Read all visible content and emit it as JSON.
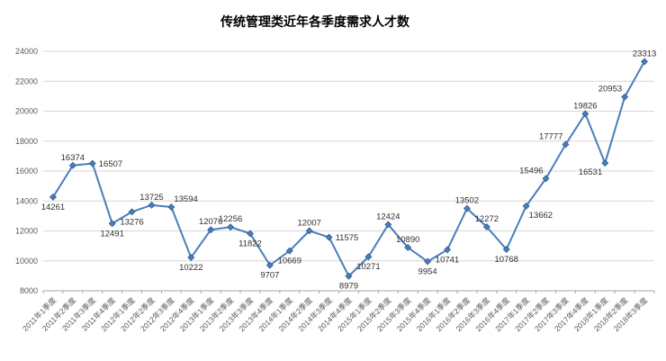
{
  "chart_data": {
    "type": "line",
    "title": "传统管理类近年各季度需求人才数",
    "categories": [
      "2011年1季度",
      "2011年2季度",
      "2011年3季度",
      "2011年4季度",
      "2012年1季度",
      "2012年2季度",
      "2012年3季度",
      "2012年4季度",
      "2013年1季度",
      "2013年2季度",
      "2013年3季度",
      "2013年4季度",
      "2014年1季度",
      "2014年2季度",
      "2014年3季度",
      "2014年4季度",
      "2015年1季度",
      "2015年2季度",
      "2015年3季度",
      "2015年4季度",
      "2016年1季度",
      "2016年2季度",
      "2016年3季度",
      "2016年4季度",
      "2017年1季度",
      "2017年2季度",
      "2017年3季度",
      "2017年4季度",
      "2018年1季度",
      "2018年2季度",
      "2018年3季度"
    ],
    "values": [
      14261,
      16374,
      16507,
      12491,
      13276,
      13725,
      13594,
      10222,
      12076,
      12256,
      11822,
      9707,
      10669,
      12007,
      11575,
      8979,
      10271,
      12424,
      10890,
      9954,
      10741,
      13502,
      12272,
      10768,
      13662,
      15496,
      17777,
      19826,
      16531,
      20953,
      23313
    ],
    "label_position": [
      "below",
      "above",
      "right",
      "below",
      "below",
      "above",
      "above-right",
      "below",
      "above",
      "above",
      "below",
      "below",
      "below",
      "above",
      "right",
      "below",
      "below",
      "above",
      "above",
      "below",
      "below",
      "above",
      "above",
      "below",
      "below-right",
      "above-left",
      "above-left",
      "above",
      "below-left",
      "above-left",
      "above"
    ],
    "ylim": [
      8000,
      24000
    ],
    "yticks": [
      8000,
      10000,
      12000,
      14000,
      16000,
      18000,
      20000,
      22000,
      24000
    ],
    "grid": true,
    "legend": "none",
    "line_color": "#4a7ebb",
    "marker": "diamond",
    "marker_color": "#4a7ebb",
    "marker_edge_color": "#2f5a8f",
    "gridline_color": "#d6d6d6",
    "axis_line_color": "#a6a6a6",
    "axis_label_color": "#595959",
    "data_label_color": "#303030",
    "background_color": "#ffffff"
  }
}
